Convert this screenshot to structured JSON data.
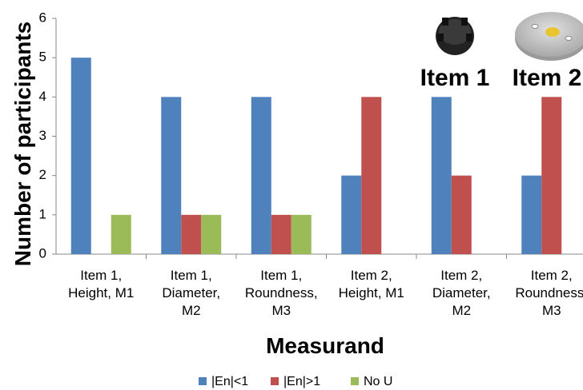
{
  "chart_data": {
    "type": "bar",
    "y_label": "Number of participants",
    "x_label": "Measurand",
    "annotations": [
      "Item 1",
      "Item 2"
    ],
    "categories": [
      [
        "Item 1,",
        "Height, M1"
      ],
      [
        "Item 1,",
        "Diameter,",
        "M2"
      ],
      [
        "Item 1,",
        "Roundness,",
        "M3"
      ],
      [
        "Item 2,",
        "Height, M1"
      ],
      [
        "Item 2,",
        "Diameter,",
        "M2"
      ],
      [
        "Item 2,",
        "Roundness,",
        "M3"
      ]
    ],
    "series": [
      {
        "name": "|En|<1",
        "color": "#4f81bd",
        "values": [
          5,
          4,
          4,
          2,
          4,
          2
        ]
      },
      {
        "name": "|En|>1",
        "color": "#c0504d",
        "values": [
          0,
          1,
          1,
          4,
          2,
          4
        ]
      },
      {
        "name": "No U",
        "color": "#9bbb59",
        "values": [
          1,
          1,
          1,
          0,
          0,
          0
        ]
      }
    ],
    "ylim": [
      0,
      6
    ],
    "yticks": [
      0,
      1,
      2,
      3,
      4,
      5,
      6
    ],
    "grid": false,
    "legend": "bottom"
  }
}
